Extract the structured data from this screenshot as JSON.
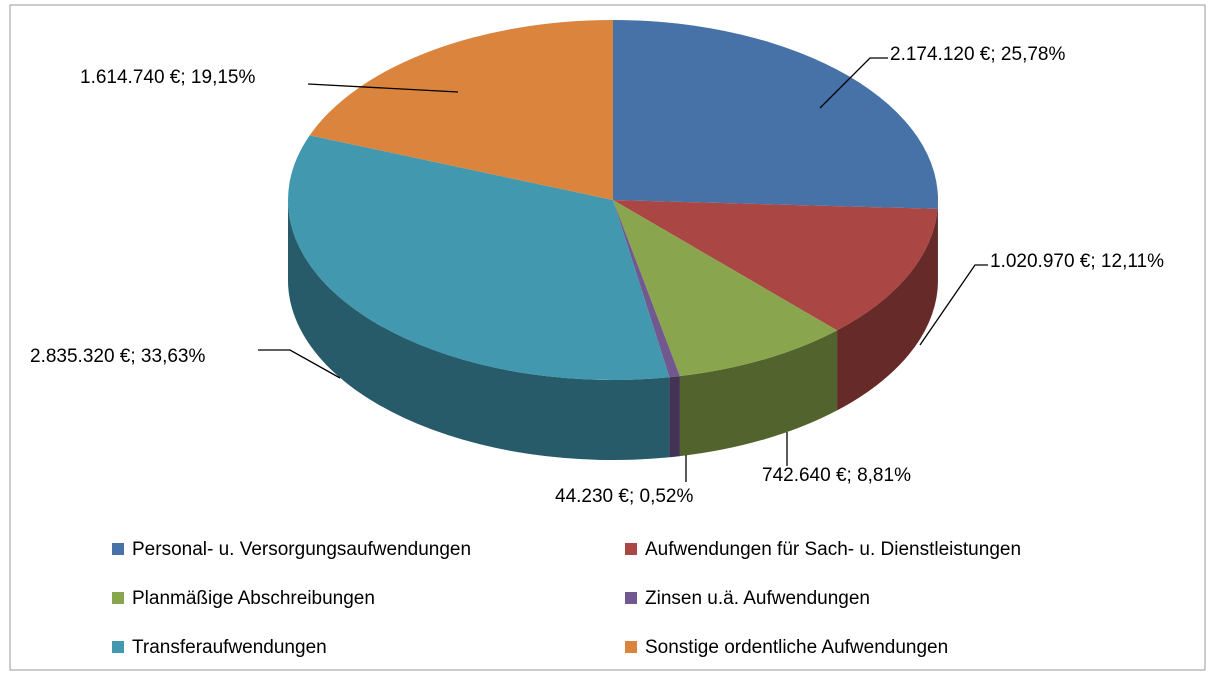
{
  "chart_data": {
    "type": "pie",
    "categories": [
      "Personal- u. Versorgungsaufwendungen",
      "Aufwendungen für Sach- u. Dienstleistungen",
      "Planmäßige Abschreibungen",
      "Zinsen u.ä. Aufwendungen",
      "Transferaufwendungen",
      "Sonstige ordentliche Aufwendungen"
    ],
    "values": [
      2174120,
      1020970,
      742640,
      44230,
      2835320,
      1614740
    ],
    "value_labels": [
      "2.174.120 €; 25,78%",
      "1.020.970 €; 12,11%",
      "742.640 €; 8,81%",
      "44.230 €; 0,52%",
      "2.835.320 €; 33,63%",
      "1.614.740 €; 19,15%"
    ],
    "colors": [
      "#4672a8",
      "#aa4643",
      "#89a54e",
      "#71588f",
      "#4198af",
      "#db843d"
    ],
    "legend": "bottom"
  }
}
